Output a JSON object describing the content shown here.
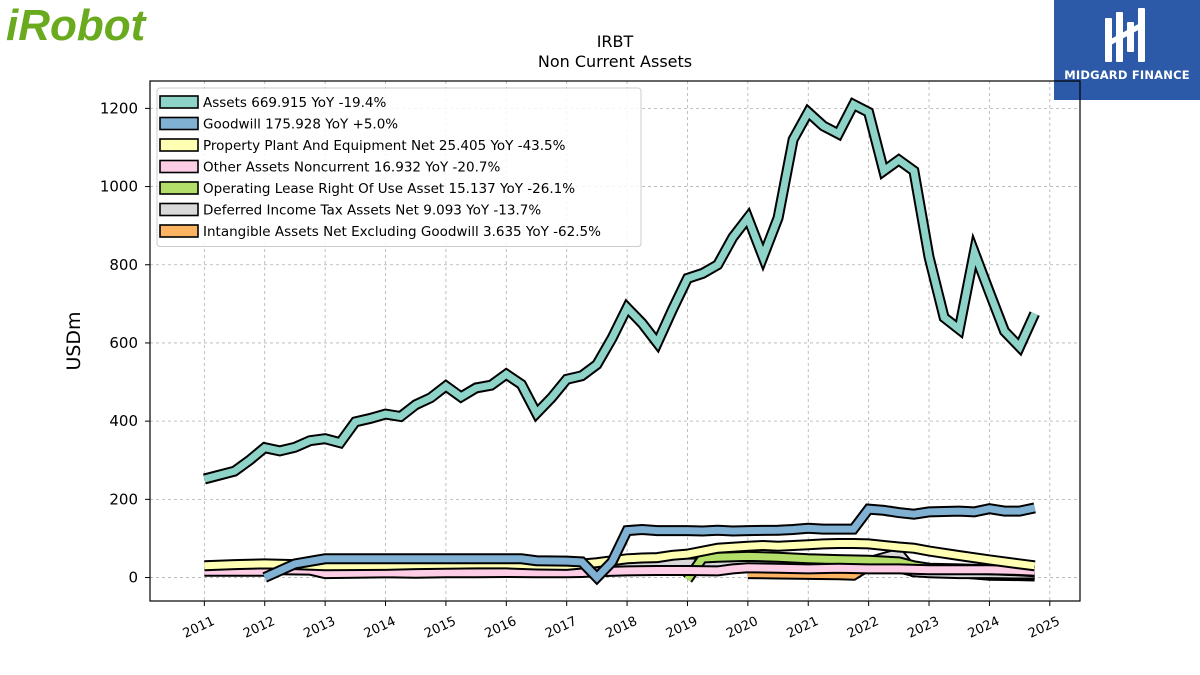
{
  "branding": {
    "left_logo_text": "iRobot",
    "left_logo_color": "#6aaa1e",
    "right_logo_text": "MIDGARD FINANCE",
    "right_logo_bg": "#2c5aa8"
  },
  "chart_data": {
    "type": "area",
    "title": "IRBT",
    "subtitle": "Non Current  Assets",
    "xlabel": "",
    "ylabel": "USDm",
    "xlim": [
      2010.1,
      2025.5
    ],
    "ylim": [
      -60,
      1270
    ],
    "x_ticks": [
      2011,
      2012,
      2013,
      2014,
      2015,
      2016,
      2017,
      2018,
      2019,
      2020,
      2021,
      2022,
      2023,
      2024,
      2025
    ],
    "x_tick_labels": [
      "2011",
      "2012",
      "2013",
      "2014",
      "2015",
      "2016",
      "2017",
      "2018",
      "2019",
      "2020",
      "2021",
      "2022",
      "2023",
      "2024",
      "2025"
    ],
    "y_ticks": [
      0,
      200,
      400,
      600,
      800,
      1000,
      1200
    ],
    "y_tick_labels": [
      "0",
      "200",
      "400",
      "600",
      "800",
      "1000",
      "1200"
    ],
    "grid": true,
    "legend_position": "top-left",
    "series": [
      {
        "name": "Assets",
        "legend": "Assets  669.915 YoY -19.4%",
        "color": "#8dd3c7",
        "x": [
          2011.0,
          2011.5,
          2011.75,
          2012.0,
          2012.25,
          2012.5,
          2012.75,
          2013.0,
          2013.25,
          2013.5,
          2013.75,
          2014.0,
          2014.25,
          2014.5,
          2014.75,
          2015.0,
          2015.25,
          2015.5,
          2015.75,
          2016.0,
          2016.25,
          2016.5,
          2016.75,
          2017.0,
          2017.25,
          2017.5,
          2017.75,
          2018.0,
          2018.25,
          2018.5,
          2018.75,
          2019.0,
          2019.25,
          2019.5,
          2019.75,
          2020.0,
          2020.25,
          2020.5,
          2020.75,
          2021.0,
          2021.25,
          2021.5,
          2021.75,
          2022.0,
          2022.25,
          2022.5,
          2022.75,
          2023.0,
          2023.25,
          2023.5,
          2023.75,
          2024.0,
          2024.25,
          2024.5,
          2024.75
        ],
        "values": [
          252,
          272,
          300,
          332,
          324,
          333,
          350,
          355,
          345,
          398,
          407,
          418,
          412,
          442,
          460,
          490,
          462,
          485,
          492,
          520,
          494,
          420,
          460,
          507,
          516,
          545,
          612,
          690,
          650,
          600,
          685,
          765,
          778,
          800,
          870,
          920,
          820,
          920,
          1120,
          1190,
          1155,
          1135,
          1210,
          1190,
          1040,
          1068,
          1040,
          820,
          665,
          635,
          832,
          730,
          630,
          590,
          675
        ]
      },
      {
        "name": "Goodwill",
        "legend": "Goodwill  175.928 YoY +5.0%",
        "color": "#80b1d3",
        "x": [
          2012.0,
          2012.5,
          2013.0,
          2014.0,
          2015.0,
          2016.0,
          2016.25,
          2016.5,
          2017.0,
          2017.25,
          2017.5,
          2017.75,
          2018.0,
          2018.25,
          2018.5,
          2019.0,
          2019.25,
          2019.5,
          2019.75,
          2020.0,
          2020.5,
          2020.75,
          2021.0,
          2021.25,
          2021.75,
          2022.0,
          2022.25,
          2022.5,
          2022.75,
          2023.0,
          2023.5,
          2023.75,
          2024.0,
          2024.25,
          2024.5,
          2024.75
        ],
        "values": [
          0,
          35,
          48,
          48,
          48,
          48,
          48,
          43,
          42,
          40,
          0,
          40,
          120,
          123,
          120,
          120,
          119,
          121,
          119,
          120,
          121,
          123,
          126,
          124,
          124,
          175,
          172,
          166,
          162,
          168,
          170,
          168,
          176,
          170,
          170,
          178
        ]
      },
      {
        "name": "Property Plant And Equipment Net",
        "legend": "Property Plant And Equipment Net  25.405 YoY -43.5%",
        "color": "#ffffb3",
        "x": [
          2011.0,
          2011.5,
          2012.0,
          2012.5,
          2013.0,
          2014.0,
          2014.5,
          2015.0,
          2015.5,
          2016.0,
          2016.5,
          2017.0,
          2017.5,
          2018.0,
          2018.25,
          2018.5,
          2018.75,
          2019.0,
          2019.5,
          2020.0,
          2020.25,
          2020.5,
          2020.75,
          2021.0,
          2021.25,
          2021.5,
          2021.75,
          2022.0,
          2022.5,
          2022.75,
          2023.0,
          2023.5,
          2024.0,
          2024.5,
          2024.75
        ],
        "values": [
          30,
          33,
          35,
          33,
          30,
          31,
          33,
          34,
          35,
          35,
          32,
          31,
          38,
          48,
          50,
          51,
          57,
          60,
          75,
          80,
          82,
          80,
          82,
          84,
          86,
          87,
          87,
          86,
          78,
          75,
          68,
          56,
          45,
          35,
          30
        ]
      },
      {
        "name": "Other Assets Noncurrent",
        "legend": "Other Assets Noncurrent  16.932 YoY -20.7%",
        "color": "#fccde5",
        "x": [
          2011.0,
          2011.5,
          2012.0,
          2012.25,
          2012.75,
          2013.0,
          2013.5,
          2014.0,
          2014.5,
          2015.0,
          2015.5,
          2016.0,
          2016.5,
          2017.0,
          2017.25,
          2017.5,
          2018.0,
          2018.5,
          2019.0,
          2019.5,
          2019.75,
          2020.0,
          2020.5,
          2021.0,
          2021.5,
          2022.0,
          2022.5,
          2023.0,
          2023.5,
          2024.0,
          2024.5,
          2024.75
        ],
        "values": [
          16,
          16,
          16,
          20,
          19,
          10,
          11,
          12,
          11,
          12,
          12,
          13,
          12,
          12,
          13,
          15,
          17,
          18,
          18,
          17,
          22,
          25,
          24,
          22,
          24,
          22,
          22,
          20,
          20,
          20,
          18,
          16
        ]
      },
      {
        "name": "Operating Lease Right Of Use Asset",
        "legend": "Operating Lease Right Of Use Asset  15.137 YoY -26.1%",
        "color": "#b3de69",
        "x": [
          2019.0,
          2019.25,
          2019.5,
          2020.0,
          2020.5,
          2021.0,
          2021.5,
          2022.0,
          2022.5,
          2022.75,
          2023.0,
          2023.5,
          2024.0,
          2024.5,
          2024.75
        ],
        "values": [
          -5,
          50,
          52,
          54,
          52,
          48,
          46,
          44,
          40,
          30,
          24,
          22,
          20,
          17,
          15
        ]
      },
      {
        "name": "Deferred Income Tax Assets Net",
        "legend": "Deferred Income Tax Assets Net  9.093 YoY -13.7%",
        "color": "#d9d9d9",
        "x": [
          2017.0,
          2017.5,
          2018.0,
          2018.5,
          2019.0,
          2019.5,
          2020.0,
          2020.5,
          2021.0,
          2021.5,
          2022.0,
          2022.5,
          2022.75,
          2023.0,
          2023.5,
          2024.0,
          2024.5,
          2024.75
        ],
        "values": [
          32,
          32,
          33,
          35,
          37,
          38,
          38,
          35,
          32,
          33,
          40,
          62,
          15,
          12,
          10,
          10,
          9,
          9
        ]
      },
      {
        "name": "Intangible Assets Net Excluding Goodwill",
        "legend": "Intangible Assets Net Excluding Goodwill  3.635 YoY -62.5%",
        "color": "#fdb462",
        "x": [
          2020.0,
          2020.5,
          2021.0,
          2021.5,
          2021.75,
          2022.0,
          2022.5,
          2022.75,
          2023.0,
          2023.5,
          2024.0,
          2024.5,
          2024.75
        ],
        "values": [
          10,
          9,
          8,
          7,
          6,
          30,
          25,
          15,
          14,
          12,
          6,
          5,
          4
        ]
      }
    ]
  }
}
